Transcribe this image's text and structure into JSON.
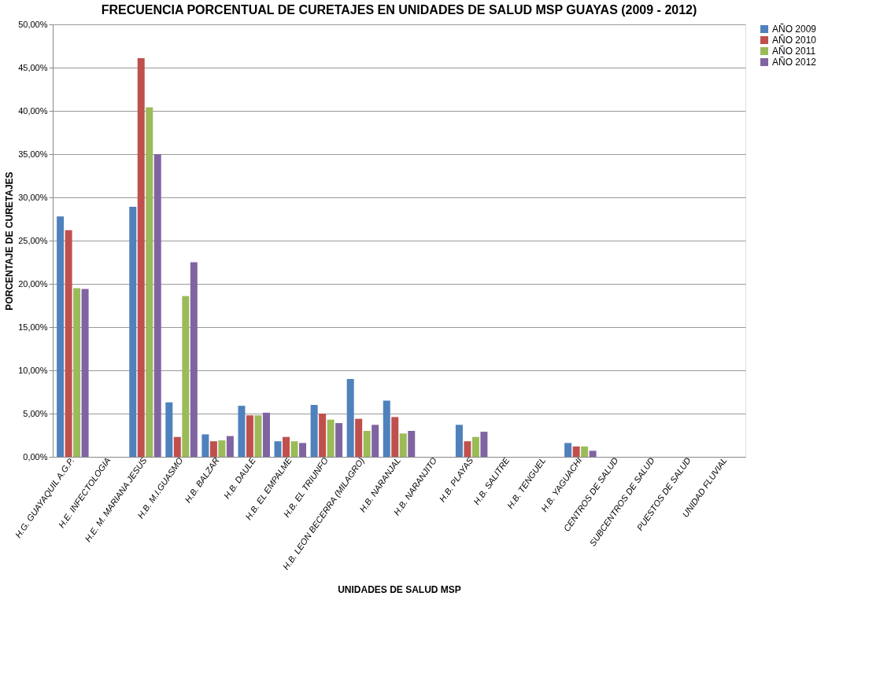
{
  "chart_data": {
    "type": "bar",
    "title": "FRECUENCIA PORCENTUAL DE CURETAJES EN UNIDADES DE SALUD MSP GUAYAS (2009 - 2012)",
    "xlabel": "UNIDADES DE SALUD MSP",
    "ylabel": "PORCENTAJE DE CURETAJES",
    "categories": [
      "H.G. GUAYAQUIL  A.G.P.",
      "H.E.  INFECTOLOGIA",
      "H.E.  M. MARIANA JESUS",
      "H.B.  M.I.GUASMO",
      "H.B.  BALZAR",
      "H.B.  DAULE",
      "H.B.  EL EMPALME",
      "H.B.  EL TRIUNFO",
      "H.B.  LEON BECERRA (MILAGRO)",
      "H.B.  NARANJAL",
      "H.B.  NARANJITO",
      "H.B.  PLAYAS",
      "H.B.  SALITRE",
      "H.B.  TENGUEL",
      "H.B.  YAGUACHI",
      "CENTROS DE SALUD",
      "SUBCENTROS DE SALUD",
      "PUESTOS DE SALUD",
      "UNIDAD FLUVIAL"
    ],
    "series": [
      {
        "name": "AÑO 2009",
        "color": "#4f81bd",
        "values": [
          27.8,
          0,
          28.9,
          6.3,
          2.6,
          5.9,
          1.8,
          6.0,
          9.0,
          6.5,
          0,
          3.7,
          0,
          0,
          1.6,
          0,
          0,
          0,
          0
        ]
      },
      {
        "name": "AÑO 2010",
        "color": "#c0504d",
        "values": [
          26.2,
          0,
          46.1,
          2.3,
          1.8,
          4.8,
          2.3,
          5.0,
          4.4,
          4.6,
          0,
          1.8,
          0,
          0,
          1.2,
          0,
          0,
          0,
          0
        ]
      },
      {
        "name": "AÑO 2011",
        "color": "#9bbb59",
        "values": [
          19.5,
          0,
          40.4,
          18.6,
          1.9,
          4.8,
          1.8,
          4.3,
          3.0,
          2.7,
          0,
          2.3,
          0,
          0,
          1.2,
          0,
          0,
          0,
          0
        ]
      },
      {
        "name": "AÑO 2012",
        "color": "#8064a2",
        "values": [
          19.4,
          0,
          35.0,
          22.5,
          2.4,
          5.1,
          1.6,
          3.9,
          3.7,
          3.0,
          0,
          2.9,
          0,
          0,
          0.7,
          0,
          0,
          0,
          0
        ]
      }
    ],
    "ylim": [
      0,
      50
    ],
    "yticks": [
      {
        "value": 0,
        "label": "0,00%"
      },
      {
        "value": 5,
        "label": "5,00%"
      },
      {
        "value": 10,
        "label": "10,00%"
      },
      {
        "value": 15,
        "label": "15,00%"
      },
      {
        "value": 20,
        "label": "20,00%"
      },
      {
        "value": 25,
        "label": "25,00%"
      },
      {
        "value": 30,
        "label": "30,00%"
      },
      {
        "value": 35,
        "label": "35,00%"
      },
      {
        "value": 40,
        "label": "40,00%"
      },
      {
        "value": 45,
        "label": "45,00%"
      },
      {
        "value": 50,
        "label": "50,00%"
      }
    ],
    "grid": "y",
    "legend": "right"
  }
}
